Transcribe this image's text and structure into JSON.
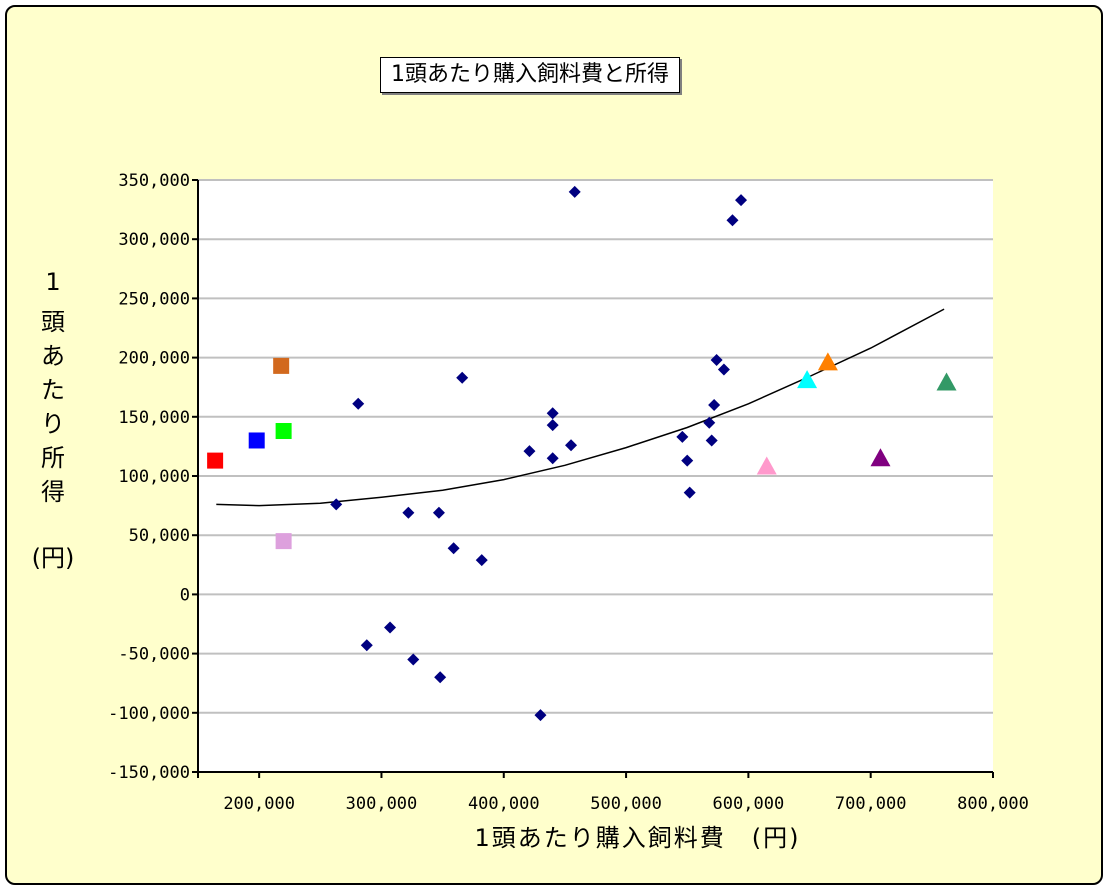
{
  "chart_data": {
    "type": "scatter",
    "title": "1頭あたり購入飼料費と所得",
    "xlabel": "1頭あたり購入飼料費　(円)",
    "ylabel_chars": [
      "1",
      "頭",
      "あ",
      "た",
      "り",
      "所",
      "得",
      "",
      "(円)"
    ],
    "xlim": [
      150000,
      800000
    ],
    "ylim": [
      -150000,
      350000
    ],
    "x_ticks": [
      "200,000",
      "300,000",
      "400,000",
      "500,000",
      "600,000",
      "700,000",
      "800,000"
    ],
    "x_tick_values": [
      200000,
      300000,
      400000,
      500000,
      600000,
      700000,
      800000
    ],
    "y_ticks": [
      "350,000",
      "300,000",
      "250,000",
      "200,000",
      "150,000",
      "100,000",
      "50,000",
      "0",
      "-50,000",
      "-100,000",
      "-150,000"
    ],
    "y_tick_values": [
      350000,
      300000,
      250000,
      200000,
      150000,
      100000,
      50000,
      0,
      -50000,
      -100000,
      -150000
    ],
    "grid": true,
    "series": [
      {
        "marker": "diamond",
        "color": "#000080",
        "points": [
          [
            263000,
            76000
          ],
          [
            281000,
            161000
          ],
          [
            288000,
            -43000
          ],
          [
            307000,
            -28000
          ],
          [
            322000,
            69000
          ],
          [
            326000,
            -55000
          ],
          [
            347000,
            69000
          ],
          [
            348000,
            -70000
          ],
          [
            359000,
            39000
          ],
          [
            366000,
            183000
          ],
          [
            382000,
            29000
          ],
          [
            421000,
            121000
          ],
          [
            430000,
            -102000
          ],
          [
            440000,
            153000
          ],
          [
            440000,
            143000
          ],
          [
            440000,
            115000
          ],
          [
            455000,
            126000
          ],
          [
            458000,
            340000
          ],
          [
            546000,
            133000
          ],
          [
            550000,
            113000
          ],
          [
            552000,
            86000
          ],
          [
            568000,
            145000
          ],
          [
            570000,
            130000
          ],
          [
            572000,
            160000
          ],
          [
            574000,
            198000
          ],
          [
            580000,
            190000
          ],
          [
            587000,
            316000
          ],
          [
            594000,
            333000
          ]
        ]
      },
      {
        "marker": "square",
        "points": [
          {
            "x": 164000,
            "y": 113000,
            "color": "#ff0000"
          },
          {
            "x": 198000,
            "y": 130000,
            "color": "#0000ff"
          },
          {
            "x": 218000,
            "y": 193000,
            "color": "#d2691e"
          },
          {
            "x": 220000,
            "y": 138000,
            "color": "#00ff00"
          },
          {
            "x": 220000,
            "y": 45000,
            "color": "#dda0dd"
          }
        ]
      },
      {
        "marker": "triangle",
        "points": [
          {
            "x": 615000,
            "y": 108000,
            "color": "#ff99cc"
          },
          {
            "x": 648000,
            "y": 181000,
            "color": "#00ffff"
          },
          {
            "x": 665000,
            "y": 196000,
            "color": "#ff8000"
          },
          {
            "x": 708000,
            "y": 115000,
            "color": "#800080"
          },
          {
            "x": 762000,
            "y": 179000,
            "color": "#339966"
          }
        ]
      }
    ],
    "trendline": {
      "type": "polynomial",
      "color": "#000000",
      "points": [
        [
          165000,
          76000
        ],
        [
          200000,
          75000
        ],
        [
          250000,
          77000
        ],
        [
          300000,
          82000
        ],
        [
          350000,
          88000
        ],
        [
          400000,
          97000
        ],
        [
          450000,
          109000
        ],
        [
          500000,
          124000
        ],
        [
          550000,
          141000
        ],
        [
          600000,
          161000
        ],
        [
          650000,
          184000
        ],
        [
          700000,
          208000
        ],
        [
          760000,
          241000
        ]
      ]
    }
  }
}
